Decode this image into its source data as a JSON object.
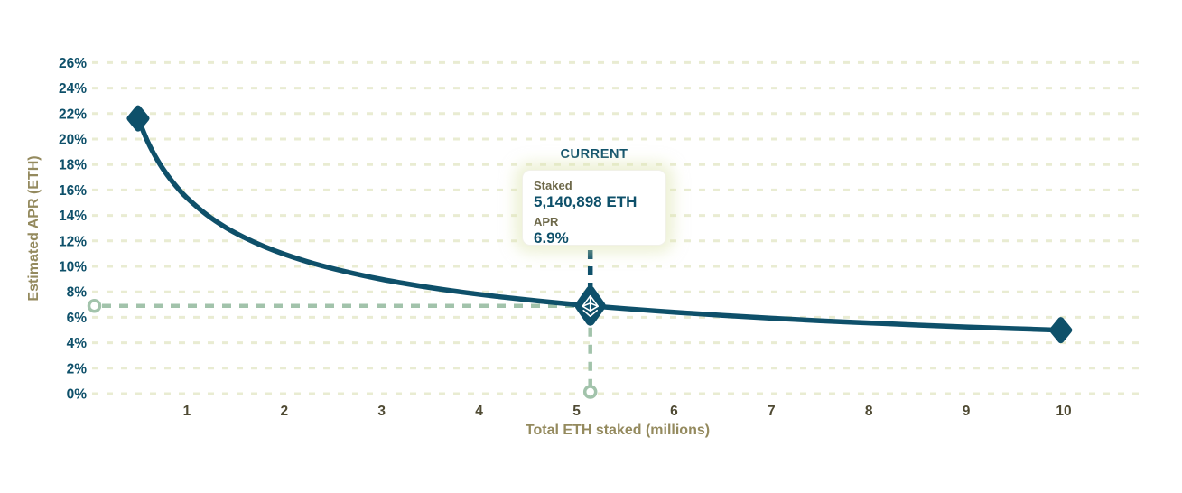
{
  "chart_data": {
    "type": "line",
    "title": "",
    "xlabel": "Total ETH staked (millions)",
    "ylabel": "Estimated APR (ETH)",
    "x_ticks": [
      1,
      2,
      3,
      4,
      5,
      6,
      7,
      8,
      9,
      10
    ],
    "y_tick_labels": [
      "0%",
      "2%",
      "4%",
      "6%",
      "8%",
      "10%",
      "12%",
      "14%",
      "16%",
      "18%",
      "20%",
      "22%",
      "24%",
      "26%"
    ],
    "xlim": [
      0,
      10.8
    ],
    "ylim": [
      0,
      26
    ],
    "grid": "dashed-horizontal",
    "series": [
      {
        "name": "Estimated APR (ETH)",
        "points": [
          [
            0.5,
            21.62
          ],
          [
            0.6,
            19.77
          ],
          [
            0.7,
            18.33
          ],
          [
            0.8,
            17.17
          ],
          [
            0.9,
            16.21
          ],
          [
            1,
            15.39
          ],
          [
            1.2,
            14.08
          ],
          [
            1.4,
            13.05
          ],
          [
            1.6,
            12.23
          ],
          [
            1.8,
            11.54
          ],
          [
            2,
            10.96
          ],
          [
            2.3,
            10.23
          ],
          [
            2.6,
            9.64
          ],
          [
            3,
            8.98
          ],
          [
            3.4,
            8.45
          ],
          [
            3.8,
            8.0
          ],
          [
            4.2,
            7.62
          ],
          [
            4.6,
            7.29
          ],
          [
            5,
            6.99
          ],
          [
            5.14,
            6.9
          ],
          [
            5.5,
            6.68
          ],
          [
            6,
            6.4
          ],
          [
            6.5,
            6.15
          ],
          [
            7,
            5.93
          ],
          [
            7.5,
            5.73
          ],
          [
            8,
            5.56
          ],
          [
            8.5,
            5.39
          ],
          [
            9,
            5.24
          ],
          [
            9.5,
            5.11
          ],
          [
            9.97,
            4.99
          ]
        ]
      }
    ],
    "current_point": {
      "x": 5.140898,
      "y": 6.9
    },
    "annotation": {
      "title": "CURRENT",
      "staked_label": "Staked",
      "staked_value": "5,140,898 ETH",
      "apr_label": "APR",
      "apr_value": "6.9%"
    }
  },
  "colors": {
    "curve_teal": "#0e506a",
    "axis_title_olive": "#948a5e",
    "x_tick_olive": "#4f4a33",
    "tooltip_label_olive": "#6d6849",
    "gridline": "#e9ecd2",
    "guide_sage": "#a2c3ab",
    "background": "#ffffff",
    "eth_glyph": "#ffffff"
  }
}
